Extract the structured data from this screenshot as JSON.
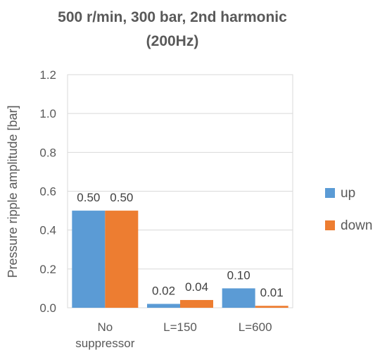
{
  "chart_data": {
    "type": "bar",
    "title_lines": [
      "500 r/min, 300 bar, 2nd harmonic",
      "(200Hz)"
    ],
    "ylabel": "Pressure ripple amplitude [bar]",
    "xlabel": "",
    "ylim": [
      0,
      1.2
    ],
    "yticks": [
      "0.0",
      "0.2",
      "0.4",
      "0.6",
      "0.8",
      "1.0",
      "1.2"
    ],
    "ytick_values": [
      0,
      0.2,
      0.4,
      0.6,
      0.8,
      1.0,
      1.2
    ],
    "categories": [
      [
        "No",
        "suppressor"
      ],
      [
        "L=150"
      ],
      [
        "L=600"
      ]
    ],
    "series": [
      {
        "name": "up",
        "color": "#5b9bd5",
        "values": [
          0.5,
          0.02,
          0.1
        ],
        "labels": [
          "0.50",
          "0.02",
          "0.10"
        ]
      },
      {
        "name": "down",
        "color": "#ed7d31",
        "values": [
          0.5,
          0.04,
          0.01
        ],
        "labels": [
          "0.50",
          "0.04",
          "0.01"
        ]
      }
    ],
    "grid": true,
    "legend_position": "right"
  }
}
